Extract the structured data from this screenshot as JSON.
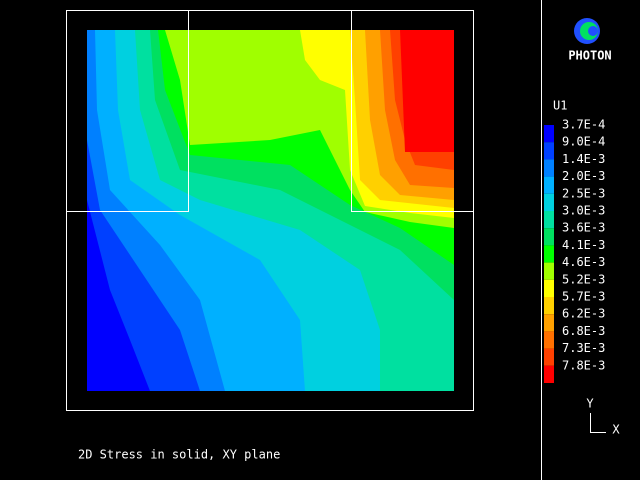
{
  "logo": {
    "label": "PHOTON"
  },
  "legend": {
    "title": "U1",
    "items": [
      {
        "label": "3.7E-4",
        "color": "#0000ff"
      },
      {
        "label": "9.0E-4",
        "color": "#0040ff"
      },
      {
        "label": "1.4E-3",
        "color": "#0080ff"
      },
      {
        "label": "2.0E-3",
        "color": "#00b0ff"
      },
      {
        "label": "2.5E-3",
        "color": "#00d0e0"
      },
      {
        "label": "3.0E-3",
        "color": "#00e0a0"
      },
      {
        "label": "3.6E-3",
        "color": "#00e060"
      },
      {
        "label": "4.1E-3",
        "color": "#00ff00"
      },
      {
        "label": "4.6E-3",
        "color": "#a0ff00"
      },
      {
        "label": "5.2E-3",
        "color": "#ffff00"
      },
      {
        "label": "5.7E-3",
        "color": "#ffd000"
      },
      {
        "label": "6.2E-3",
        "color": "#ffa000"
      },
      {
        "label": "6.8E-3",
        "color": "#ff7000"
      },
      {
        "label": "7.3E-3",
        "color": "#ff4000"
      },
      {
        "label": "7.8E-3",
        "color": "#ff0000"
      }
    ]
  },
  "caption": "2D Stress in solid, XY plane",
  "axes": {
    "y": "Y",
    "x": "X"
  }
}
